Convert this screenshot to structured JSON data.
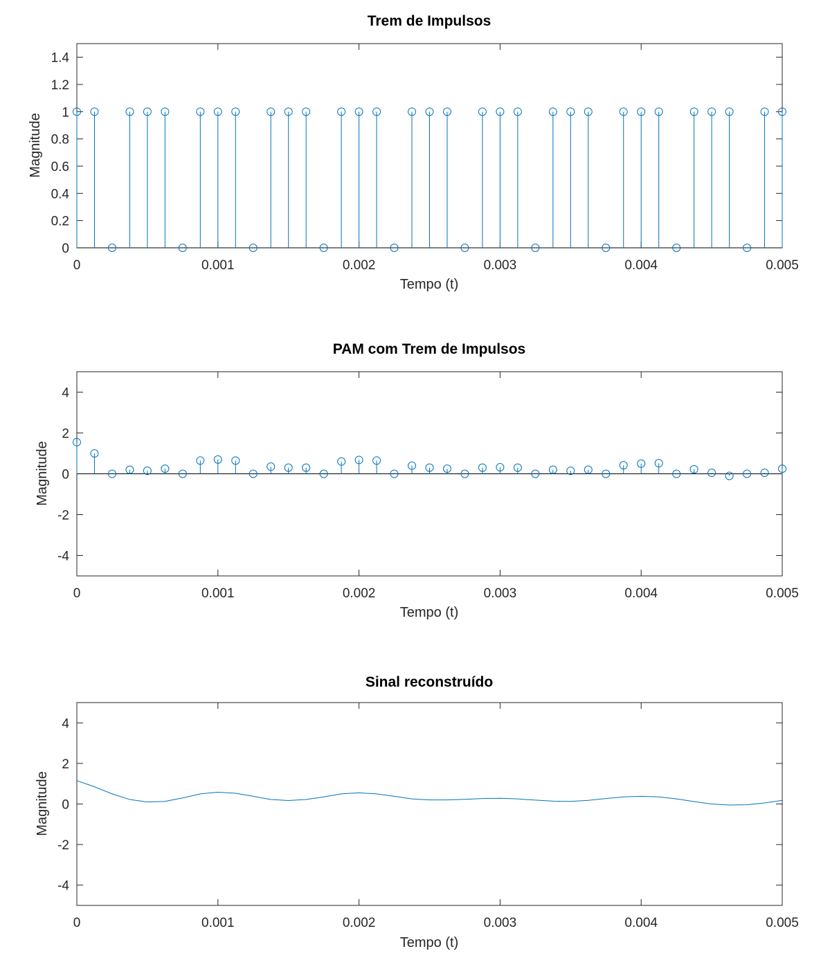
{
  "chart_data": [
    {
      "type": "stem",
      "title": "Trem de Impulsos",
      "xlabel": "Tempo (t)",
      "ylabel": "Magnitude",
      "xlim": [
        0,
        0.005
      ],
      "ylim": [
        0,
        1.5
      ],
      "xticks": [
        0,
        0.001,
        0.002,
        0.003,
        0.004,
        0.005
      ],
      "xtick_labels": [
        "0",
        "0.001",
        "0.002",
        "0.003",
        "0.004",
        "0.005"
      ],
      "yticks": [
        0,
        0.2,
        0.4,
        0.6,
        0.8,
        1,
        1.2,
        1.4
      ],
      "ytick_labels": [
        "0",
        "0.2",
        "0.4",
        "0.6",
        "0.8",
        "1",
        "1.2",
        "1.4"
      ],
      "grid": false,
      "color": "#0072BD",
      "x": [
        0,
        0.000125,
        0.00025,
        0.000375,
        0.0005,
        0.000625,
        0.00075,
        0.000875,
        0.001,
        0.001125,
        0.00125,
        0.001375,
        0.0015,
        0.001625,
        0.00175,
        0.001875,
        0.002,
        0.002125,
        0.00225,
        0.002375,
        0.0025,
        0.002625,
        0.00275,
        0.002875,
        0.003,
        0.003125,
        0.00325,
        0.003375,
        0.0035,
        0.003625,
        0.00375,
        0.003875,
        0.004,
        0.004125,
        0.00425,
        0.004375,
        0.0045,
        0.004625,
        0.00475,
        0.004875,
        0.005
      ],
      "values": [
        1,
        1,
        0,
        1,
        1,
        1,
        0,
        1,
        1,
        1,
        0,
        1,
        1,
        1,
        0,
        1,
        1,
        1,
        0,
        1,
        1,
        1,
        0,
        1,
        1,
        1,
        0,
        1,
        1,
        1,
        0,
        1,
        1,
        1,
        0,
        1,
        1,
        1,
        0,
        1,
        1
      ]
    },
    {
      "type": "stem",
      "title": "PAM com Trem de Impulsos",
      "xlabel": "Tempo (t)",
      "ylabel": "Magnitude",
      "xlim": [
        0,
        0.005
      ],
      "ylim": [
        -5,
        5
      ],
      "xticks": [
        0,
        0.001,
        0.002,
        0.003,
        0.004,
        0.005
      ],
      "xtick_labels": [
        "0",
        "0.001",
        "0.002",
        "0.003",
        "0.004",
        "0.005"
      ],
      "yticks": [
        -4,
        -2,
        0,
        2,
        4
      ],
      "ytick_labels": [
        "-4",
        "-2",
        "0",
        "2",
        "4"
      ],
      "grid": false,
      "color": "#0072BD",
      "x": [
        0,
        0.000125,
        0.00025,
        0.000375,
        0.0005,
        0.000625,
        0.00075,
        0.000875,
        0.001,
        0.001125,
        0.00125,
        0.001375,
        0.0015,
        0.001625,
        0.00175,
        0.001875,
        0.002,
        0.002125,
        0.00225,
        0.002375,
        0.0025,
        0.002625,
        0.00275,
        0.002875,
        0.003,
        0.003125,
        0.00325,
        0.003375,
        0.0035,
        0.003625,
        0.00375,
        0.003875,
        0.004,
        0.004125,
        0.00425,
        0.004375,
        0.0045,
        0.004625,
        0.00475,
        0.004875,
        0.005
      ],
      "values": [
        1.55,
        1.0,
        0,
        0.2,
        0.15,
        0.25,
        0,
        0.65,
        0.7,
        0.65,
        0,
        0.35,
        0.3,
        0.3,
        0,
        0.6,
        0.68,
        0.65,
        0,
        0.4,
        0.3,
        0.25,
        0,
        0.3,
        0.32,
        0.3,
        0,
        0.2,
        0.15,
        0.2,
        0,
        0.42,
        0.5,
        0.52,
        0,
        0.22,
        0.05,
        -0.1,
        0,
        0.05,
        0.25
      ]
    },
    {
      "type": "line",
      "title": "Sinal reconstruído",
      "xlabel": "Tempo (t)",
      "ylabel": "Magnitude",
      "xlim": [
        0,
        0.005
      ],
      "ylim": [
        -5,
        5
      ],
      "xticks": [
        0,
        0.001,
        0.002,
        0.003,
        0.004,
        0.005
      ],
      "xtick_labels": [
        "0",
        "0.001",
        "0.002",
        "0.003",
        "0.004",
        "0.005"
      ],
      "yticks": [
        -4,
        -2,
        0,
        2,
        4
      ],
      "ytick_labels": [
        "-4",
        "-2",
        "0",
        "2",
        "4"
      ],
      "grid": false,
      "color": "#0072BD",
      "x": [
        0,
        0.000125,
        0.00025,
        0.000375,
        0.0005,
        0.000625,
        0.00075,
        0.000875,
        0.001,
        0.001125,
        0.00125,
        0.001375,
        0.0015,
        0.001625,
        0.00175,
        0.001875,
        0.002,
        0.002125,
        0.00225,
        0.002375,
        0.0025,
        0.002625,
        0.00275,
        0.002875,
        0.003,
        0.003125,
        0.00325,
        0.003375,
        0.0035,
        0.003625,
        0.00375,
        0.003875,
        0.004,
        0.004125,
        0.00425,
        0.004375,
        0.0045,
        0.004625,
        0.00475,
        0.004875,
        0.005
      ],
      "values": [
        1.15,
        0.85,
        0.5,
        0.22,
        0.1,
        0.13,
        0.3,
        0.5,
        0.58,
        0.53,
        0.38,
        0.22,
        0.17,
        0.22,
        0.35,
        0.5,
        0.55,
        0.5,
        0.38,
        0.25,
        0.2,
        0.2,
        0.23,
        0.27,
        0.28,
        0.25,
        0.19,
        0.14,
        0.13,
        0.18,
        0.27,
        0.35,
        0.38,
        0.35,
        0.25,
        0.12,
        0.0,
        -0.05,
        -0.04,
        0.05,
        0.18
      ]
    }
  ]
}
